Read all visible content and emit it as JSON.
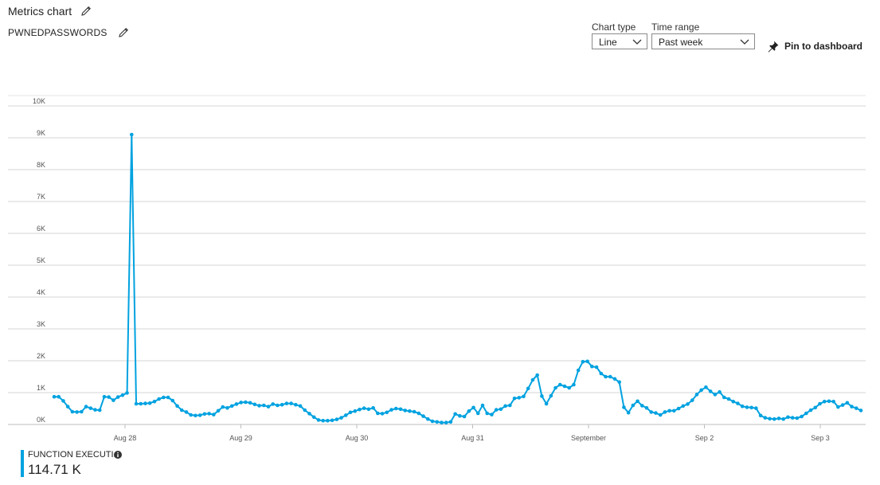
{
  "header": {
    "title": "Metrics chart",
    "resource": "PWNEDPASSWORDS"
  },
  "controls": {
    "chart_type_label": "Chart type",
    "chart_type_value": "Line",
    "time_range_label": "Time range",
    "time_range_value": "Past week",
    "pin_label": "Pin to dashboard"
  },
  "legend": {
    "name": "FUNCTION EXECUTI...",
    "value": "114.71 K",
    "color": "#00a2e0"
  },
  "chart_data": {
    "type": "line",
    "title": "",
    "xlabel": "",
    "ylabel": "",
    "ylim": [
      0,
      10000
    ],
    "y_ticks": [
      "0K",
      "1K",
      "2K",
      "3K",
      "4K",
      "5K",
      "6K",
      "7K",
      "8K",
      "9K",
      "10K"
    ],
    "x_ticks": [
      "Aug 28",
      "Aug 29",
      "Aug 30",
      "Aug 31",
      "September",
      "Sep 2",
      "Sep 3"
    ],
    "grid": true,
    "series": [
      {
        "name": "FUNCTION EXECUTI...",
        "color": "#00a2e0",
        "values": [
          870,
          870,
          740,
          560,
          400,
          390,
          400,
          560,
          510,
          460,
          450,
          870,
          860,
          760,
          860,
          920,
          990,
          9100,
          650,
          650,
          660,
          670,
          720,
          800,
          850,
          850,
          750,
          580,
          450,
          390,
          300,
          280,
          290,
          330,
          340,
          310,
          430,
          550,
          520,
          580,
          640,
          690,
          700,
          680,
          630,
          590,
          600,
          560,
          640,
          600,
          620,
          660,
          660,
          620,
          580,
          450,
          340,
          230,
          140,
          120,
          120,
          130,
          160,
          210,
          290,
          380,
          420,
          470,
          510,
          480,
          520,
          350,
          340,
          380,
          460,
          500,
          480,
          440,
          420,
          400,
          350,
          260,
          170,
          100,
          80,
          60,
          60,
          80,
          330,
          270,
          250,
          420,
          530,
          350,
          600,
          350,
          310,
          460,
          480,
          580,
          600,
          820,
          840,
          880,
          1130,
          1400,
          1550,
          890,
          650,
          900,
          1150,
          1250,
          1200,
          1150,
          1250,
          1700,
          1970,
          1980,
          1820,
          1800,
          1600,
          1500,
          1500,
          1430,
          1330,
          540,
          370,
          600,
          730,
          590,
          520,
          390,
          360,
          300,
          390,
          430,
          430,
          500,
          580,
          640,
          760,
          940,
          1080,
          1170,
          1040,
          940,
          1020,
          850,
          800,
          720,
          660,
          570,
          540,
          530,
          510,
          280,
          210,
          180,
          170,
          190,
          170,
          230,
          210,
          200,
          250,
          350,
          450,
          530,
          650,
          720,
          730,
          720,
          550,
          610,
          680,
          560,
          510,
          440
        ]
      }
    ]
  }
}
